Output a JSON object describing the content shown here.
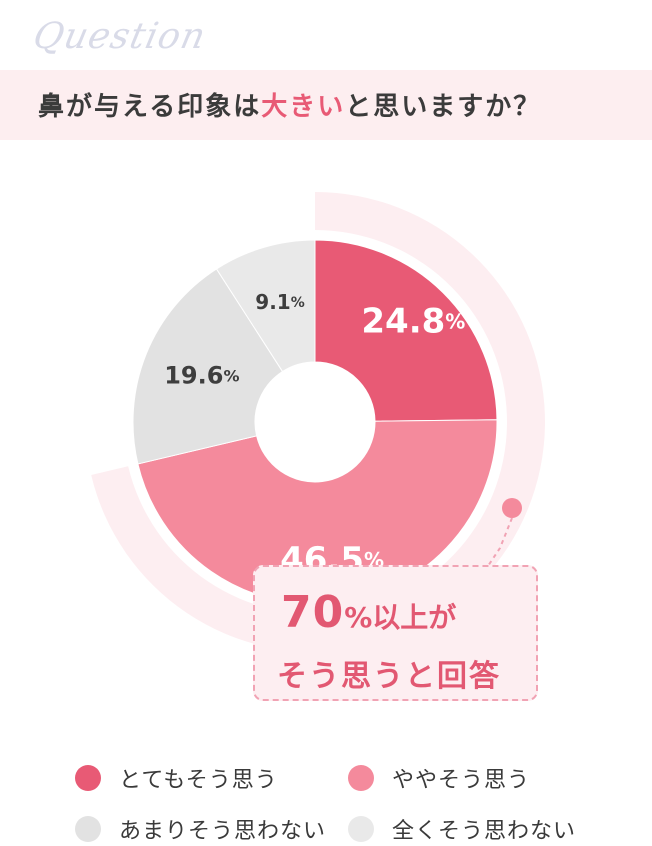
{
  "question": {
    "script_word": "Question",
    "title_before": "鼻が与える印象は",
    "title_accent": "大きい",
    "title_after": "と思いますか？"
  },
  "chart_data": {
    "type": "pie",
    "slices": [
      {
        "label": "とてもそう思う",
        "value": 24.8,
        "display": "24.8",
        "color": "#e85a75"
      },
      {
        "label": "ややそう思う",
        "value": 46.5,
        "display": "46.5",
        "color": "#f48a9c"
      },
      {
        "label": "あまりそう思わない",
        "value": 19.6,
        "display": "19.6",
        "color": "#e2e2e2"
      },
      {
        "label": "全くそう思わない",
        "value": 9.1,
        "display": "9.1",
        "color": "#e9e9e9"
      }
    ],
    "unit": "%",
    "legend": "bottom",
    "start_angle_deg": 0,
    "direction": "clockwise"
  },
  "callout": {
    "number": "70",
    "pct": "%以上が",
    "line2": "そう思うと回答"
  },
  "colors": {
    "accent": "#e85a75",
    "accent_light": "#f48a9c",
    "highlight_band": "#fdeef1",
    "gray": "#e2e2e2"
  }
}
